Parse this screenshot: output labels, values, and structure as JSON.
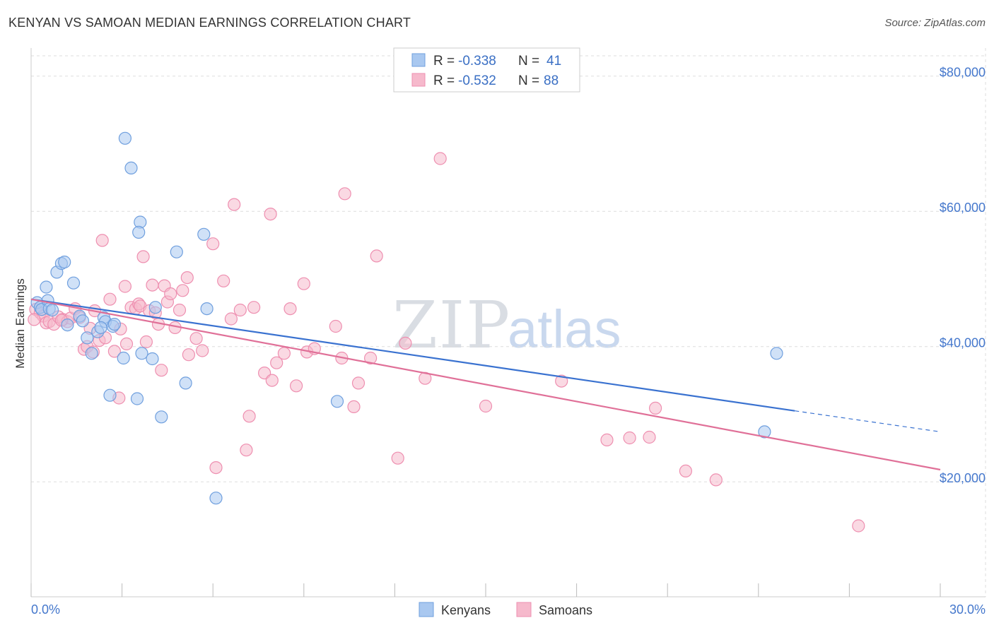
{
  "title": "KENYAN VS SAMOAN MEDIAN EARNINGS CORRELATION CHART",
  "source": "Source: ZipAtlas.com",
  "watermark": {
    "part1": "ZIP",
    "part2": "atlas"
  },
  "legend": {
    "rows": [
      {
        "r_label": "R =",
        "r_value": "-0.338",
        "n_label": "N =",
        "n_value": "41"
      },
      {
        "r_label": "R =",
        "r_value": "-0.532",
        "n_label": "N =",
        "n_value": "88"
      }
    ]
  },
  "bottom_legend": [
    "Kenyans",
    "Samoans"
  ],
  "colors": {
    "kenyans_fill": "#a9c8f0",
    "kenyans_stroke": "#6f9fde",
    "kenyans_line": "#3a72d0",
    "samoans_fill": "#f6b9cc",
    "samoans_stroke": "#ee8fb0",
    "samoans_line": "#e07098",
    "grid": "#dddddd",
    "axis_label": "#4477cc"
  },
  "chart_data": {
    "type": "scatter",
    "title": "KENYAN VS SAMOAN MEDIAN EARNINGS CORRELATION CHART",
    "xlabel": "",
    "ylabel": "Median Earnings",
    "xlim": [
      0,
      30
    ],
    "ylim": [
      3000,
      83000
    ],
    "x_tick_labels": [
      "0.0%",
      "30.0%"
    ],
    "y_ticks": [
      20000,
      40000,
      60000,
      80000
    ],
    "y_tick_labels": [
      "$20,000",
      "$40,000",
      "$60,000",
      "$80,000"
    ],
    "grid": true,
    "legend_position": "top-center",
    "series": [
      {
        "name": "Kenyans",
        "r": -0.338,
        "n": 41,
        "trend": {
          "x0": 0,
          "y0": 47000,
          "x1": 25.2,
          "y1": 30500,
          "dash_to": 30,
          "dash_y": 27400
        },
        "points": [
          [
            0.2,
            46500
          ],
          [
            0.3,
            45800
          ],
          [
            0.35,
            45500
          ],
          [
            0.5,
            48800
          ],
          [
            0.55,
            46800
          ],
          [
            0.6,
            45600
          ],
          [
            0.7,
            45400
          ],
          [
            0.85,
            51000
          ],
          [
            1.0,
            52300
          ],
          [
            1.1,
            52500
          ],
          [
            1.2,
            43200
          ],
          [
            1.4,
            49400
          ],
          [
            1.6,
            44500
          ],
          [
            1.7,
            43800
          ],
          [
            1.85,
            41300
          ],
          [
            2.0,
            39000
          ],
          [
            2.2,
            42200
          ],
          [
            2.4,
            44300
          ],
          [
            2.45,
            43700
          ],
          [
            2.6,
            32800
          ],
          [
            2.7,
            43000
          ],
          [
            2.75,
            43300
          ],
          [
            3.05,
            38300
          ],
          [
            3.1,
            70800
          ],
          [
            3.3,
            66400
          ],
          [
            3.5,
            32300
          ],
          [
            3.6,
            58400
          ],
          [
            3.65,
            39000
          ],
          [
            3.55,
            56900
          ],
          [
            4.0,
            38200
          ],
          [
            4.1,
            45800
          ],
          [
            4.3,
            29600
          ],
          [
            4.8,
            54000
          ],
          [
            5.1,
            34600
          ],
          [
            5.7,
            56600
          ],
          [
            5.8,
            45600
          ],
          [
            6.1,
            17600
          ],
          [
            10.1,
            31900
          ],
          [
            24.2,
            27400
          ],
          [
            24.6,
            39000
          ],
          [
            2.3,
            42800
          ]
        ]
      },
      {
        "name": "Samoans",
        "r": -0.532,
        "n": 88,
        "trend": {
          "x0": 0,
          "y0": 47000,
          "x1": 30,
          "y1": 21800
        },
        "points": [
          [
            0.15,
            45500
          ],
          [
            0.3,
            45000
          ],
          [
            0.4,
            44500
          ],
          [
            0.5,
            43500
          ],
          [
            0.6,
            43700
          ],
          [
            0.75,
            43300
          ],
          [
            0.9,
            44400
          ],
          [
            1.05,
            44000
          ],
          [
            1.2,
            43700
          ],
          [
            1.3,
            44200
          ],
          [
            1.45,
            45600
          ],
          [
            1.6,
            44300
          ],
          [
            1.75,
            39600
          ],
          [
            1.85,
            40000
          ],
          [
            1.95,
            42700
          ],
          [
            2.05,
            39200
          ],
          [
            2.1,
            45300
          ],
          [
            2.25,
            40900
          ],
          [
            2.35,
            55700
          ],
          [
            2.45,
            41300
          ],
          [
            2.6,
            47000
          ],
          [
            2.75,
            39300
          ],
          [
            2.9,
            32400
          ],
          [
            2.95,
            42600
          ],
          [
            3.1,
            48900
          ],
          [
            3.15,
            40400
          ],
          [
            3.3,
            45800
          ],
          [
            3.45,
            45600
          ],
          [
            3.55,
            46300
          ],
          [
            3.6,
            46000
          ],
          [
            3.7,
            53300
          ],
          [
            3.8,
            40700
          ],
          [
            3.9,
            45300
          ],
          [
            4.0,
            49100
          ],
          [
            4.1,
            45000
          ],
          [
            4.2,
            43300
          ],
          [
            4.3,
            36500
          ],
          [
            4.4,
            49000
          ],
          [
            4.5,
            46600
          ],
          [
            4.6,
            47800
          ],
          [
            4.75,
            42800
          ],
          [
            4.9,
            45400
          ],
          [
            5.0,
            48300
          ],
          [
            5.15,
            50200
          ],
          [
            5.2,
            38800
          ],
          [
            5.45,
            41200
          ],
          [
            5.65,
            39400
          ],
          [
            6.0,
            55200
          ],
          [
            6.1,
            22100
          ],
          [
            6.35,
            49700
          ],
          [
            6.6,
            44100
          ],
          [
            6.7,
            61000
          ],
          [
            6.9,
            45400
          ],
          [
            7.1,
            24700
          ],
          [
            7.2,
            29700
          ],
          [
            7.35,
            45800
          ],
          [
            7.7,
            36100
          ],
          [
            7.9,
            59600
          ],
          [
            7.95,
            35000
          ],
          [
            8.1,
            37600
          ],
          [
            8.35,
            39000
          ],
          [
            8.55,
            45600
          ],
          [
            8.75,
            34200
          ],
          [
            9.0,
            49300
          ],
          [
            9.1,
            39200
          ],
          [
            9.35,
            39700
          ],
          [
            10.05,
            43000
          ],
          [
            10.25,
            38300
          ],
          [
            10.35,
            62600
          ],
          [
            10.65,
            31100
          ],
          [
            10.8,
            34600
          ],
          [
            11.2,
            38300
          ],
          [
            11.4,
            53400
          ],
          [
            12.1,
            23500
          ],
          [
            12.35,
            40500
          ],
          [
            13.0,
            35300
          ],
          [
            13.5,
            67800
          ],
          [
            15.0,
            31200
          ],
          [
            17.5,
            34900
          ],
          [
            19.0,
            26200
          ],
          [
            19.75,
            26500
          ],
          [
            20.4,
            26600
          ],
          [
            20.6,
            30900
          ],
          [
            21.6,
            21600
          ],
          [
            22.6,
            20300
          ],
          [
            27.3,
            13500
          ],
          [
            0.1,
            44000
          ],
          [
            1.0,
            43900
          ]
        ]
      }
    ]
  }
}
